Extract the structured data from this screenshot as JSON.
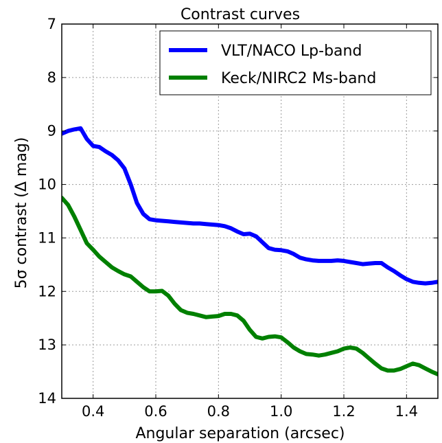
{
  "chart_data": {
    "type": "line",
    "title": "Contrast curves",
    "xlabel": "Angular separation (arcsec)",
    "ylabel": "5σ contrast (Δ mag)",
    "xlim": [
      0.3,
      1.5
    ],
    "ylim": [
      14,
      7
    ],
    "y_inverted": true,
    "grid": true,
    "legend_position": "top-right",
    "xticks": [
      0.4,
      0.6,
      0.8,
      1.0,
      1.2,
      1.4
    ],
    "xtick_labels": [
      "0.4",
      "0.6",
      "0.8",
      "1.0",
      "1.2",
      "1.4"
    ],
    "yticks": [
      7,
      8,
      9,
      10,
      11,
      12,
      13,
      14
    ],
    "ytick_labels": [
      "7",
      "8",
      "9",
      "10",
      "11",
      "12",
      "13",
      "14"
    ],
    "series": [
      {
        "name": "VLT/NACO Lp-band",
        "color": "#0000ff",
        "x": [
          0.3,
          0.32,
          0.34,
          0.36,
          0.38,
          0.4,
          0.42,
          0.44,
          0.46,
          0.48,
          0.5,
          0.52,
          0.54,
          0.56,
          0.58,
          0.6,
          0.62,
          0.64,
          0.66,
          0.68,
          0.7,
          0.72,
          0.74,
          0.76,
          0.78,
          0.8,
          0.82,
          0.84,
          0.86,
          0.88,
          0.9,
          0.92,
          0.94,
          0.96,
          0.98,
          1.0,
          1.02,
          1.04,
          1.06,
          1.08,
          1.1,
          1.12,
          1.14,
          1.16,
          1.18,
          1.2,
          1.22,
          1.24,
          1.26,
          1.28,
          1.3,
          1.32,
          1.34,
          1.36,
          1.38,
          1.4,
          1.42,
          1.44,
          1.46,
          1.48,
          1.5
        ],
        "y": [
          9.05,
          9.0,
          8.97,
          8.95,
          9.15,
          9.28,
          9.3,
          9.38,
          9.45,
          9.55,
          9.7,
          10.0,
          10.35,
          10.55,
          10.65,
          10.67,
          10.68,
          10.69,
          10.7,
          10.71,
          10.72,
          10.73,
          10.73,
          10.74,
          10.75,
          10.76,
          10.78,
          10.82,
          10.88,
          10.93,
          10.92,
          10.97,
          11.08,
          11.19,
          11.22,
          11.23,
          11.25,
          11.3,
          11.37,
          11.4,
          11.42,
          11.43,
          11.43,
          11.43,
          11.42,
          11.43,
          11.45,
          11.47,
          11.49,
          11.48,
          11.47,
          11.47,
          11.55,
          11.62,
          11.7,
          11.77,
          11.82,
          11.84,
          11.85,
          11.84,
          11.82
        ]
      },
      {
        "name": "Keck/NIRC2 Ms-band",
        "color": "#008000",
        "x": [
          0.3,
          0.32,
          0.34,
          0.36,
          0.38,
          0.4,
          0.42,
          0.44,
          0.46,
          0.48,
          0.5,
          0.52,
          0.54,
          0.56,
          0.58,
          0.6,
          0.62,
          0.64,
          0.66,
          0.68,
          0.7,
          0.72,
          0.74,
          0.76,
          0.78,
          0.8,
          0.82,
          0.84,
          0.86,
          0.88,
          0.9,
          0.92,
          0.94,
          0.96,
          0.98,
          1.0,
          1.02,
          1.04,
          1.06,
          1.08,
          1.1,
          1.12,
          1.14,
          1.16,
          1.18,
          1.2,
          1.22,
          1.24,
          1.26,
          1.28,
          1.3,
          1.32,
          1.34,
          1.36,
          1.38,
          1.4,
          1.42,
          1.44,
          1.46,
          1.48,
          1.5
        ],
        "y": [
          10.25,
          10.38,
          10.6,
          10.85,
          11.1,
          11.22,
          11.35,
          11.45,
          11.55,
          11.62,
          11.68,
          11.72,
          11.82,
          11.92,
          12.0,
          12.0,
          11.99,
          12.08,
          12.23,
          12.35,
          12.4,
          12.42,
          12.45,
          12.48,
          12.47,
          12.46,
          12.42,
          12.42,
          12.45,
          12.55,
          12.72,
          12.85,
          12.88,
          12.85,
          12.84,
          12.86,
          12.95,
          13.05,
          13.12,
          13.17,
          13.18,
          13.2,
          13.18,
          13.15,
          13.12,
          13.07,
          13.05,
          13.07,
          13.15,
          13.25,
          13.35,
          13.44,
          13.48,
          13.48,
          13.45,
          13.4,
          13.35,
          13.38,
          13.44,
          13.5,
          13.55
        ]
      }
    ]
  }
}
